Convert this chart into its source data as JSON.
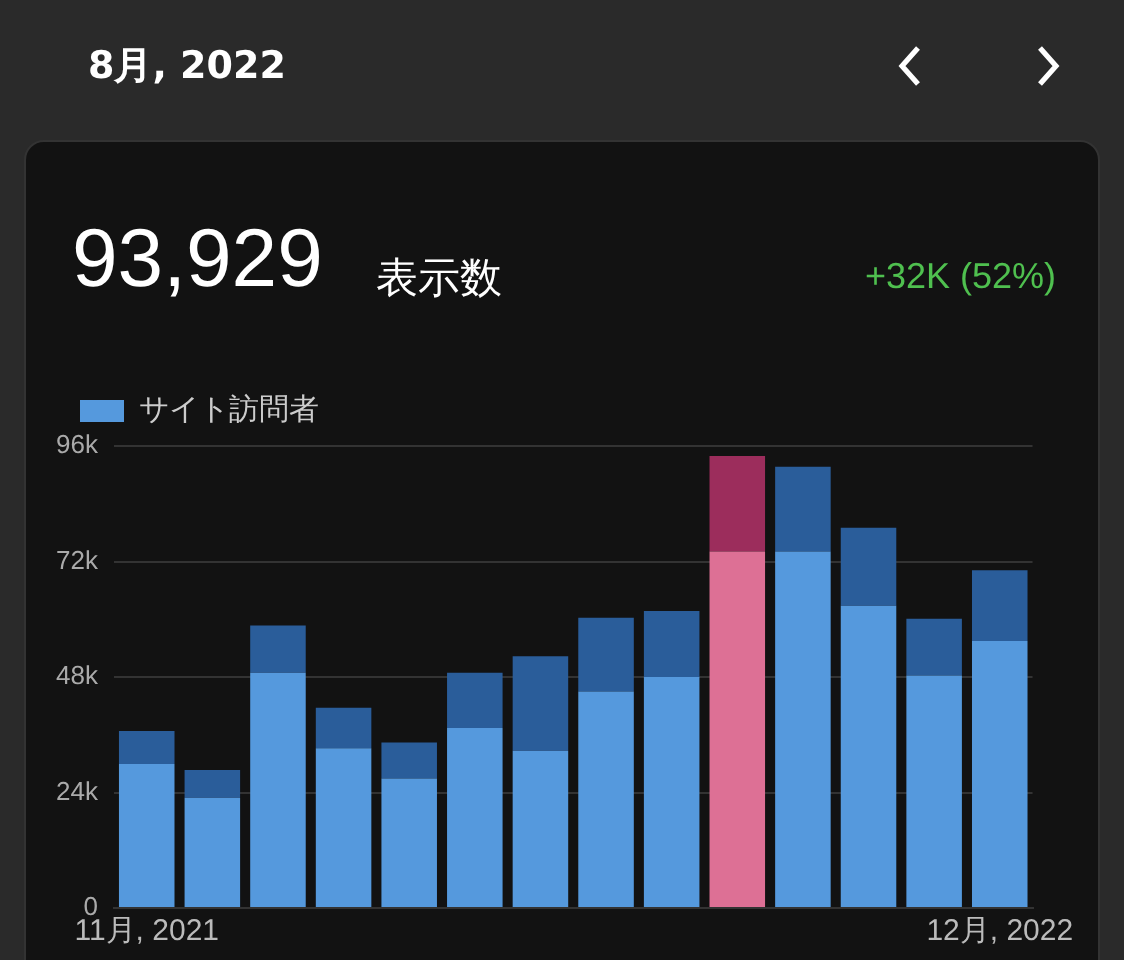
{
  "chart_data": {
    "type": "bar",
    "title": "8月, 2022",
    "annotations": [
      "93,929",
      "表示数",
      "+32K (52%)"
    ],
    "categories": [
      "11月, 2021",
      null,
      null,
      null,
      null,
      null,
      null,
      null,
      null,
      null,
      null,
      null,
      null,
      "12月, 2022"
    ],
    "stacked": true,
    "series": [
      {
        "name": "サイト訪問者",
        "color": "#5599dd",
        "colors": [
          "#5599dd",
          "#5599dd",
          "#5599dd",
          "#5599dd",
          "#5599dd",
          "#5599dd",
          "#5599dd",
          "#5599dd",
          "#5599dd",
          "#dd7095",
          "#5599dd",
          "#5599dd",
          "#5599dd",
          "#5599dd"
        ],
        "values": [
          29900,
          22900,
          48900,
          33200,
          26900,
          37400,
          32700,
          45000,
          48000,
          74100,
          74100,
          62800,
          48300,
          55500
        ]
      },
      {
        "color": "#2a5d9a",
        "colors": [
          "#2a5d9a",
          "#2a5d9a",
          "#2a5d9a",
          "#2a5d9a",
          "#2a5d9a",
          "#2a5d9a",
          "#2a5d9a",
          "#2a5d9a",
          "#2a5d9a",
          "#9c2d5c",
          "#2a5d9a",
          "#2a5d9a",
          "#2a5d9a",
          "#2a5d9a"
        ],
        "values": [
          6900,
          5800,
          9800,
          8400,
          7500,
          11500,
          19600,
          15300,
          13700,
          19800,
          17600,
          16200,
          11800,
          14700
        ]
      }
    ],
    "ylim": [
      0,
      96000
    ],
    "yticks": [
      0,
      {
        "value": 24000,
        "label": "24k"
      },
      {
        "value": 48000,
        "label": "48k"
      },
      {
        "value": 72000,
        "label": "72k"
      },
      {
        "value": 96000,
        "label": "96k"
      }
    ],
    "grid": "y",
    "legend": "top left"
  }
}
